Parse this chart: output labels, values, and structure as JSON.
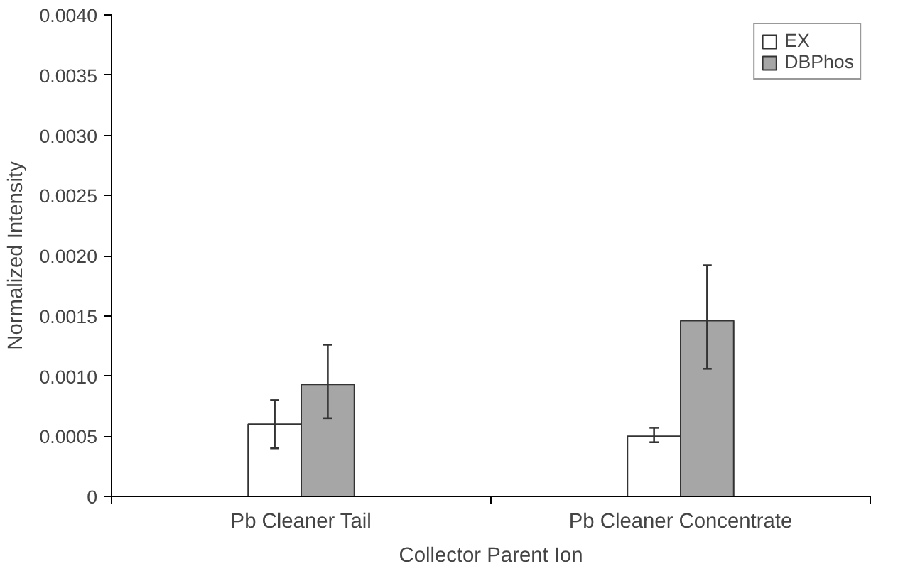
{
  "chart_data": {
    "type": "bar",
    "xlabel": "Collector Parent Ion",
    "ylabel": "Normalized Intensity",
    "categories": [
      "Pb Cleaner Tail",
      "Pb Cleaner Concentrate"
    ],
    "series": [
      {
        "name": "EX",
        "color": "#ffffff",
        "values": [
          0.0006,
          0.0005
        ],
        "errors": [
          [
            0.0004,
            0.0008
          ],
          [
            0.00045,
            0.00057
          ]
        ]
      },
      {
        "name": "DBPhos",
        "color": "#a6a6a6",
        "values": [
          0.00093,
          0.00146
        ],
        "errors": [
          [
            0.00065,
            0.00126
          ],
          [
            0.00106,
            0.00192
          ]
        ]
      }
    ],
    "ylim": [
      0,
      0.004
    ],
    "yticks": [
      0,
      0.0005,
      {
        "value": 0.001,
        "label": "0.0010"
      },
      0.0015,
      {
        "value": 0.002,
        "label": "0.0020"
      },
      0.0025,
      {
        "value": 0.003,
        "label": "0.0030"
      },
      0.0035,
      {
        "value": 0.004,
        "label": "0.0040"
      }
    ],
    "grid": false,
    "legend": "top right"
  }
}
